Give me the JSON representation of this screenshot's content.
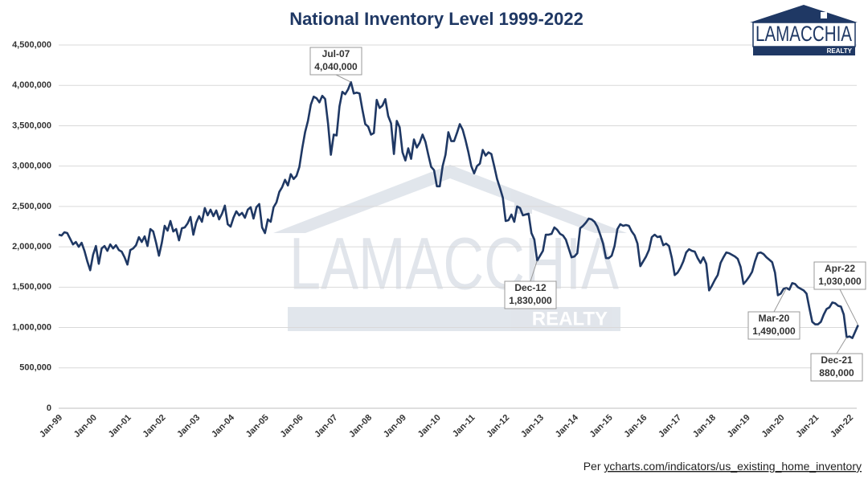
{
  "chart_data": {
    "type": "line",
    "title": "National Inventory Level 1999-2022",
    "brand": "LAMACCHIA",
    "brand_sub": "REALTY",
    "source_prefix": "Per ",
    "source_link": "ycharts.com/indicators/us_existing_home_inventory",
    "categories": [
      "Jan-99",
      null,
      null,
      null,
      null,
      null,
      null,
      null,
      null,
      null,
      null,
      null,
      "Jan-00",
      null,
      null,
      null,
      null,
      null,
      null,
      null,
      null,
      null,
      null,
      null,
      "Jan-01",
      null,
      null,
      null,
      null,
      null,
      null,
      null,
      null,
      null,
      null,
      null,
      "Jan-02",
      null,
      null,
      null,
      null,
      null,
      null,
      null,
      null,
      null,
      null,
      null,
      "Jan-03",
      null,
      null,
      null,
      null,
      null,
      null,
      null,
      null,
      null,
      null,
      null,
      "Jan-04",
      null,
      null,
      null,
      null,
      null,
      null,
      null,
      null,
      null,
      null,
      null,
      "Jan-05",
      null,
      null,
      null,
      null,
      null,
      null,
      null,
      null,
      null,
      null,
      null,
      "Jan-06",
      null,
      null,
      null,
      null,
      null,
      null,
      null,
      null,
      null,
      null,
      null,
      "Jan-07",
      null,
      null,
      null,
      null,
      null,
      null,
      null,
      null,
      null,
      null,
      null,
      "Jan-08",
      null,
      null,
      null,
      null,
      null,
      null,
      null,
      null,
      null,
      null,
      null,
      "Jan-09",
      null,
      null,
      null,
      null,
      null,
      null,
      null,
      null,
      null,
      null,
      null,
      "Jan-10",
      null,
      null,
      null,
      null,
      null,
      null,
      null,
      null,
      null,
      null,
      null,
      "Jan-11",
      null,
      null,
      null,
      null,
      null,
      null,
      null,
      null,
      null,
      null,
      null,
      "Jan-12",
      null,
      null,
      null,
      null,
      null,
      null,
      null,
      null,
      null,
      null,
      null,
      "Jan-13",
      null,
      null,
      null,
      null,
      null,
      null,
      null,
      null,
      null,
      null,
      null,
      "Jan-14",
      null,
      null,
      null,
      null,
      null,
      null,
      null,
      null,
      null,
      null,
      null,
      "Jan-15",
      null,
      null,
      null,
      null,
      null,
      null,
      null,
      null,
      null,
      null,
      null,
      "Jan-16",
      null,
      null,
      null,
      null,
      null,
      null,
      null,
      null,
      null,
      null,
      null,
      "Jan-17",
      null,
      null,
      null,
      null,
      null,
      null,
      null,
      null,
      null,
      null,
      null,
      "Jan-18",
      null,
      null,
      null,
      null,
      null,
      null,
      null,
      null,
      null,
      null,
      null,
      "Jan-19",
      null,
      null,
      null,
      null,
      null,
      null,
      null,
      null,
      null,
      null,
      null,
      "Jan-20",
      null,
      null,
      null,
      null,
      null,
      null,
      null,
      null,
      null,
      null,
      null,
      "Jan-21",
      null,
      null,
      null,
      null,
      null,
      null,
      null,
      null,
      null,
      null,
      null,
      "Jan-22",
      null,
      null,
      null
    ],
    "series": [
      {
        "name": "Inventory",
        "color": "#1f3864",
        "values": [
          2150000,
          2140000,
          2180000,
          2170000,
          2100000,
          2030000,
          2060000,
          2000000,
          2050000,
          1950000,
          1820000,
          1710000,
          1900000,
          2010000,
          1790000,
          1980000,
          2010000,
          1950000,
          2030000,
          1980000,
          2020000,
          1960000,
          1940000,
          1870000,
          1780000,
          1960000,
          1980000,
          2020000,
          2120000,
          2060000,
          2130000,
          2010000,
          2220000,
          2190000,
          2050000,
          1890000,
          2050000,
          2260000,
          2200000,
          2320000,
          2190000,
          2220000,
          2080000,
          2230000,
          2240000,
          2290000,
          2370000,
          2150000,
          2300000,
          2380000,
          2310000,
          2480000,
          2390000,
          2460000,
          2380000,
          2450000,
          2340000,
          2410000,
          2510000,
          2280000,
          2250000,
          2360000,
          2440000,
          2390000,
          2420000,
          2360000,
          2460000,
          2490000,
          2350000,
          2490000,
          2530000,
          2240000,
          2170000,
          2340000,
          2310000,
          2490000,
          2550000,
          2680000,
          2740000,
          2830000,
          2760000,
          2900000,
          2840000,
          2880000,
          2990000,
          3220000,
          3420000,
          3560000,
          3760000,
          3860000,
          3840000,
          3790000,
          3870000,
          3830000,
          3530000,
          3140000,
          3390000,
          3380000,
          3740000,
          3920000,
          3890000,
          3950000,
          4040000,
          3900000,
          3910000,
          3900000,
          3700000,
          3520000,
          3490000,
          3390000,
          3410000,
          3820000,
          3720000,
          3750000,
          3830000,
          3620000,
          3530000,
          3150000,
          3560000,
          3480000,
          3170000,
          3070000,
          3220000,
          3090000,
          3330000,
          3230000,
          3290000,
          3390000,
          3300000,
          3140000,
          2990000,
          2950000,
          2750000,
          2750000,
          3000000,
          3140000,
          3420000,
          3310000,
          3310000,
          3410000,
          3520000,
          3450000,
          3320000,
          3170000,
          3000000,
          2910000,
          3000000,
          3030000,
          3200000,
          3130000,
          3170000,
          3150000,
          3000000,
          2840000,
          2730000,
          2610000,
          2320000,
          2330000,
          2400000,
          2310000,
          2500000,
          2480000,
          2390000,
          2400000,
          2410000,
          2170000,
          2090000,
          1830000,
          1890000,
          1950000,
          2150000,
          2150000,
          2160000,
          2240000,
          2210000,
          2160000,
          2140000,
          2090000,
          1980000,
          1870000,
          1880000,
          1920000,
          2230000,
          2260000,
          2300000,
          2350000,
          2340000,
          2310000,
          2250000,
          2150000,
          2040000,
          1860000,
          1860000,
          1890000,
          2010000,
          2220000,
          2280000,
          2260000,
          2270000,
          2260000,
          2190000,
          2140000,
          2040000,
          1760000,
          1820000,
          1880000,
          1960000,
          2120000,
          2150000,
          2120000,
          2130000,
          2020000,
          2040000,
          2010000,
          1860000,
          1650000,
          1680000,
          1740000,
          1820000,
          1930000,
          1970000,
          1950000,
          1940000,
          1860000,
          1800000,
          1870000,
          1790000,
          1460000,
          1520000,
          1590000,
          1650000,
          1800000,
          1870000,
          1930000,
          1920000,
          1900000,
          1880000,
          1850000,
          1750000,
          1540000,
          1580000,
          1630000,
          1690000,
          1820000,
          1920000,
          1930000,
          1910000,
          1870000,
          1840000,
          1810000,
          1680000,
          1400000,
          1420000,
          1480000,
          1490000,
          1470000,
          1550000,
          1540000,
          1500000,
          1480000,
          1460000,
          1420000,
          1240000,
          1070000,
          1040000,
          1040000,
          1070000,
          1160000,
          1230000,
          1250000,
          1310000,
          1300000,
          1270000,
          1260000,
          1160000,
          880000,
          890000,
          870000,
          950000,
          1030000
        ]
      }
    ],
    "annotations": [
      {
        "date": "Jul-07",
        "value": 4040000,
        "value_label": "4,040,000"
      },
      {
        "date": "Dec-12",
        "value": 1830000,
        "value_label": "1,830,000"
      },
      {
        "date": "Mar-20",
        "value": 1490000,
        "value_label": "1,490,000"
      },
      {
        "date": "Dec-21",
        "value": 880000,
        "value_label": "880,000"
      },
      {
        "date": "Apr-22",
        "value": 1030000,
        "value_label": "1,030,000"
      }
    ],
    "ylim": [
      0,
      4500000
    ],
    "yticks": [
      0,
      {
        "value": 500000,
        "label": "500,000"
      },
      {
        "value": 1000000,
        "label": "1,000,000"
      },
      {
        "value": 1500000,
        "label": "1,500,000"
      },
      {
        "value": 2000000,
        "label": "2,000,000"
      },
      {
        "value": 2500000,
        "label": "2,500,000"
      },
      {
        "value": 3000000,
        "label": "3,000,000"
      },
      {
        "value": 3500000,
        "label": "3,500,000"
      },
      {
        "value": 4000000,
        "label": "4,000,000"
      },
      {
        "value": 4500000,
        "label": "4,500,000"
      }
    ],
    "grid": true
  }
}
